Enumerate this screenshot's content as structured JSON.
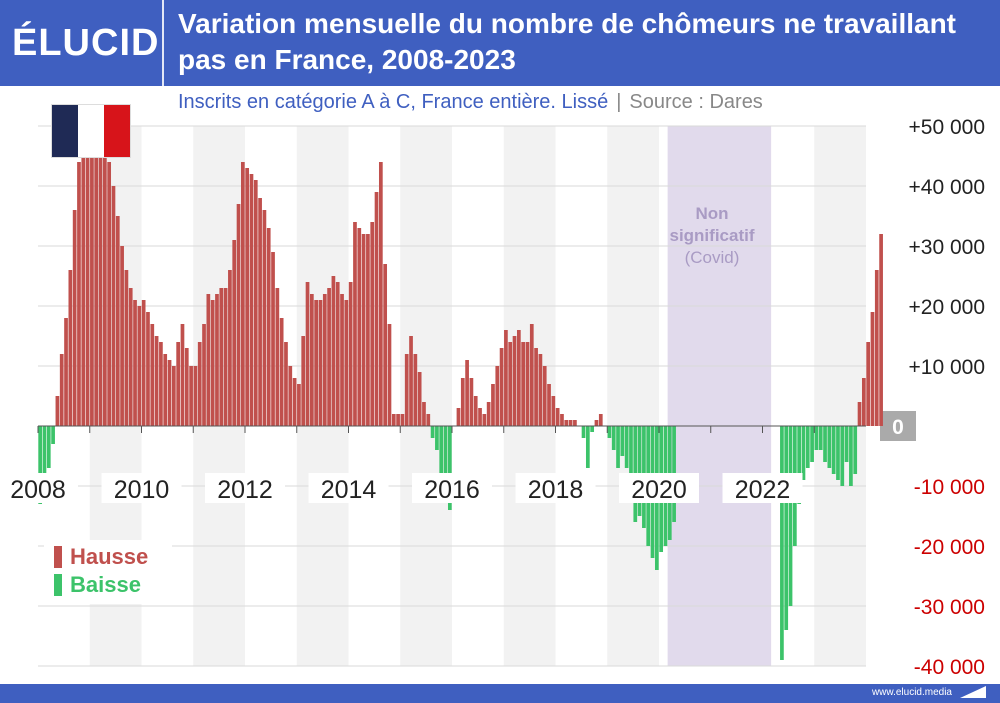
{
  "header": {
    "logo": "ÉLUCID",
    "title": "Variation mensuelle du nombre de chômeurs ne travaillant pas en France, 2008-2023"
  },
  "subheader": {
    "subtitle": "Inscrits en catégorie A à C, France entière. Lissé",
    "separator": "|",
    "source": "Source : Dares"
  },
  "footer": {
    "url": "www.elucid.media"
  },
  "flag": {
    "colors": [
      "#1f2a55",
      "#ffffff",
      "#d7141a"
    ]
  },
  "legend": [
    {
      "label": "Hausse",
      "color": "#c0504d"
    },
    {
      "label": "Baisse",
      "color": "#3cc36a"
    }
  ],
  "annotation": {
    "line1": "Non",
    "line2": "significatif",
    "line3": "(Covid)"
  },
  "colors": {
    "rise": "#c0504d",
    "fall": "#3cc36a",
    "covid_band": "#e1daec",
    "alt_band": "#f2f2f2",
    "grid": "#d9d9d9",
    "zero_box": "#aaaaaa",
    "neg_tick": "#cc0000"
  },
  "chart_data": {
    "type": "bar",
    "title": "Variation mensuelle du nombre de chômeurs ne travaillant pas en France, 2008-2023",
    "x_start": "2008-01",
    "x_end": "2023-12",
    "ylim": [
      -40000,
      50000
    ],
    "y_ticks": [
      {
        "value": 50000,
        "label": "+50 000"
      },
      {
        "value": 40000,
        "label": "+40 000"
      },
      {
        "value": 30000,
        "label": "+30 000"
      },
      {
        "value": 20000,
        "label": "+20 000"
      },
      {
        "value": 10000,
        "label": "+10 000"
      },
      {
        "value": 0,
        "label": "0"
      },
      {
        "value": -10000,
        "label": "-10 000"
      },
      {
        "value": -20000,
        "label": "-20 000"
      },
      {
        "value": -30000,
        "label": "-30 000"
      },
      {
        "value": -40000,
        "label": "-40 000"
      }
    ],
    "x_ticks": [
      "2008",
      "2010",
      "2012",
      "2014",
      "2016",
      "2018",
      "2020",
      "2022"
    ],
    "covid_period": [
      "2020-03",
      "2022-02"
    ],
    "series": [
      {
        "legend_index": 0,
        "values": [
          -13000,
          -10000,
          -7000,
          -3000,
          5000,
          12000,
          18000,
          26000,
          36000,
          44000,
          48000,
          50000,
          50000,
          48000,
          47000,
          46000,
          44000,
          40000,
          35000,
          30000,
          26000,
          23000,
          21000,
          20000,
          21000,
          19000,
          17000,
          15000,
          14000,
          12000,
          11000,
          10000,
          14000,
          17000,
          13000,
          10000,
          10000,
          14000,
          17000,
          22000,
          21000,
          22000,
          23000,
          23000,
          26000,
          31000,
          37000,
          44000,
          43000,
          42000,
          41000,
          38000,
          36000,
          33000,
          29000,
          23000,
          18000,
          14000,
          10000,
          8000,
          7000,
          15000,
          24000,
          22000,
          21000,
          21000,
          22000,
          23000,
          25000,
          24000,
          22000,
          21000,
          24000,
          34000,
          33000,
          32000,
          32000,
          34000,
          39000,
          44000,
          27000,
          17000,
          2000,
          2000,
          2000,
          12000,
          15000,
          12000,
          9000,
          4000,
          2000,
          -2000,
          -4000,
          -8000,
          -12000,
          -14000,
          0,
          3000,
          8000,
          11000,
          8000,
          5000,
          3000,
          2000,
          4000,
          7000,
          10000,
          13000,
          16000,
          14000,
          15000,
          16000,
          14000,
          14000,
          17000,
          13000,
          12000,
          10000,
          7000,
          5000,
          3000,
          2000,
          1000,
          1000,
          1000,
          0,
          -2000,
          -7000,
          -1000,
          1000,
          2000,
          0,
          -2000,
          -4000,
          -7000,
          -5000,
          -7000,
          -12000,
          -16000,
          -15000,
          -17000,
          -20000,
          -22000,
          -24000,
          -21000,
          -20000,
          -19000,
          -16000,
          0,
          0,
          0,
          0,
          0,
          0,
          0,
          0,
          0,
          0,
          0,
          0,
          0,
          0,
          0,
          0,
          0,
          0,
          0,
          0,
          0,
          0,
          0,
          0,
          -39000,
          -34000,
          -30000,
          -20000,
          -13000,
          -9000,
          -7000,
          -6000,
          -4000,
          -4000,
          -6000,
          -7000,
          -8000,
          -9000,
          -10000,
          -6000,
          -10000,
          -8000,
          4000,
          8000,
          14000,
          19000,
          26000,
          32000
        ]
      }
    ]
  }
}
